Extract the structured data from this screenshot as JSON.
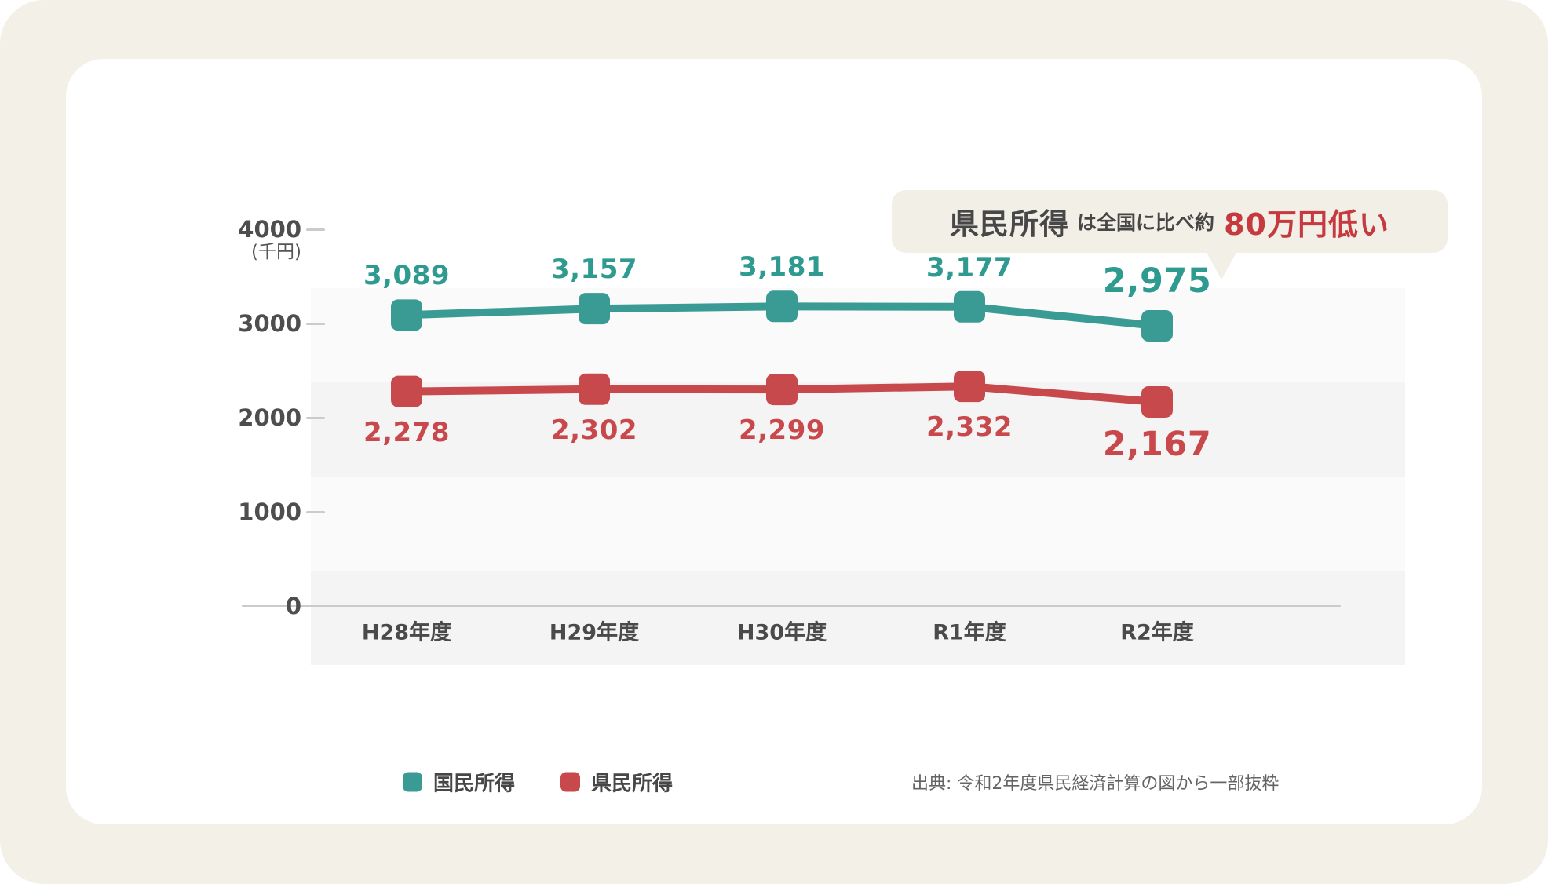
{
  "callout": {
    "subject": "県民所得",
    "middle": "は全国に比べ約",
    "emphasis": "80万円低い"
  },
  "y_axis": {
    "unit_label": "(千円)",
    "ticks": [
      "4000",
      "3000",
      "2000",
      "1000",
      "0"
    ]
  },
  "chart_data": {
    "type": "line",
    "title": "",
    "ylabel": "(千円)",
    "xlabel": "",
    "ylim": [
      0,
      4000
    ],
    "yticks": [
      4000,
      3000,
      2000,
      1000,
      0
    ],
    "grid": "alternating-horizontal-bands",
    "legend_position": "bottom-left",
    "categories": [
      "H28年度",
      "H29年度",
      "H30年度",
      "R1年度",
      "R2年度"
    ],
    "series": [
      {
        "key": "national-income",
        "name": "国民所得",
        "color": "#3a9b94",
        "label_color": "#2f9b90",
        "values": [
          3089,
          3157,
          3181,
          3177,
          2975
        ],
        "labels": [
          "3,089",
          "3,157",
          "3,181",
          "3,177",
          "2,975"
        ],
        "label_side": "above"
      },
      {
        "key": "prefectural-income",
        "name": "県民所得",
        "color": "#c7494c",
        "label_color": "#c8484b",
        "values": [
          2278,
          2302,
          2299,
          2332,
          2167
        ],
        "labels": [
          "2,278",
          "2,302",
          "2,299",
          "2,332",
          "2,167"
        ],
        "label_side": "below"
      }
    ]
  },
  "legend": {
    "items": [
      {
        "label": "国民所得",
        "color": "#3a9b94"
      },
      {
        "label": "県民所得",
        "color": "#c7494c"
      }
    ]
  },
  "source": "出典: 令和2年度県民経済計算の図から一部抜粋"
}
